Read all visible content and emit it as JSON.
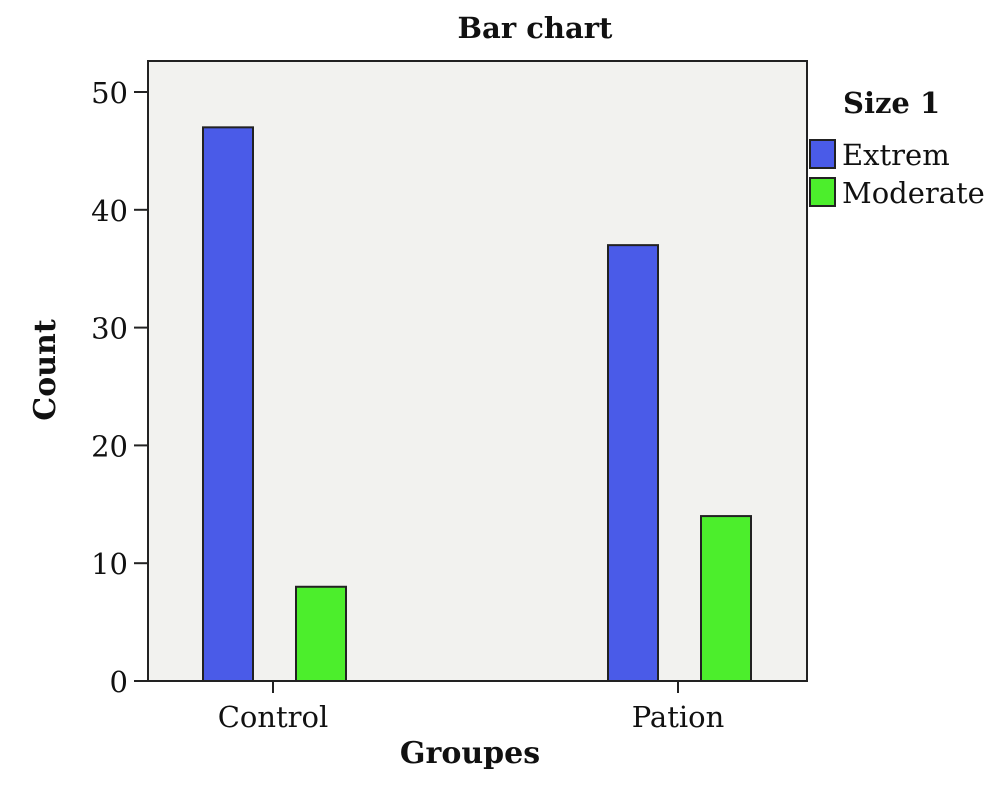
{
  "chart_data": {
    "type": "bar",
    "title": "Bar chart",
    "xlabel": "Groupes",
    "ylabel": "Count",
    "categories": [
      "Control",
      "Pation"
    ],
    "ylim": [
      0,
      50
    ],
    "yticks": [
      0,
      10,
      20,
      30,
      40,
      50
    ],
    "legend": {
      "title": "Size 1",
      "placement": "right"
    },
    "series": [
      {
        "name": "Extrem",
        "values": [
          47,
          37
        ],
        "color": "#4a5be8"
      },
      {
        "name": "Moderate",
        "values": [
          8,
          14
        ],
        "color": "#4cee2c"
      }
    ],
    "plot_background": "#f2f2ef",
    "grid": false
  }
}
